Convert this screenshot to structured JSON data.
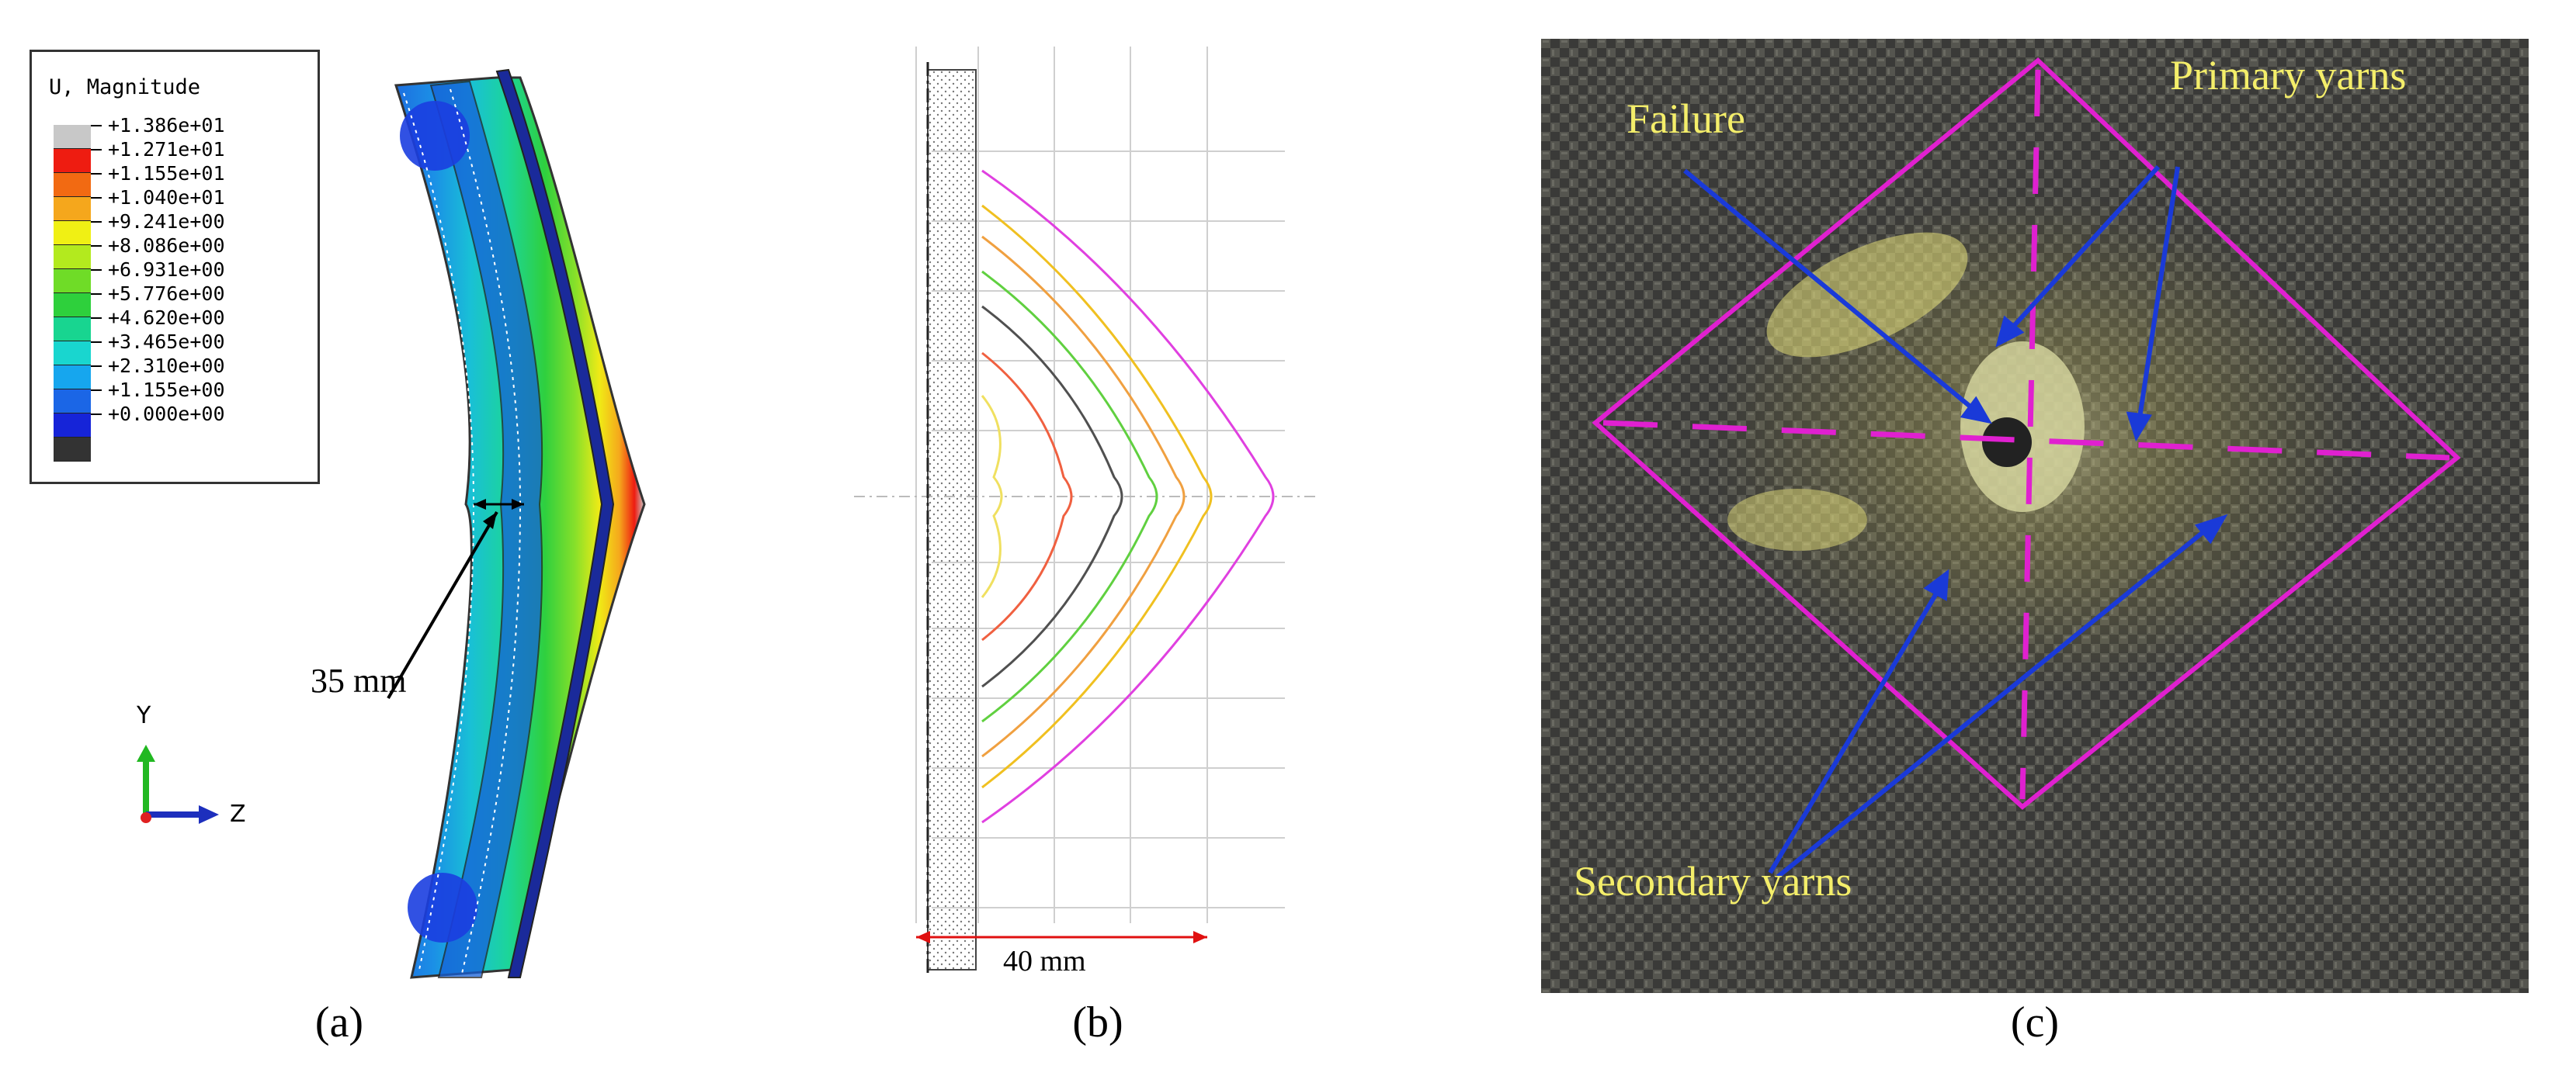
{
  "panel_a": {
    "caption": "(a)",
    "legend": {
      "title": "U, Magnitude",
      "entries": [
        {
          "value": "+1.386e+01",
          "color": "#c8c8c8"
        },
        {
          "value": "+1.271e+01",
          "color": "#ee1c11"
        },
        {
          "value": "+1.155e+01",
          "color": "#f26a12"
        },
        {
          "value": "+1.040e+01",
          "color": "#f5a71c"
        },
        {
          "value": "+9.241e+00",
          "color": "#f0f014"
        },
        {
          "value": "+8.086e+00",
          "color": "#b3ea1e"
        },
        {
          "value": "+6.931e+00",
          "color": "#6fdc27"
        },
        {
          "value": "+5.776e+00",
          "color": "#2ed03c"
        },
        {
          "value": "+4.620e+00",
          "color": "#18d590"
        },
        {
          "value": "+3.465e+00",
          "color": "#19d6cf"
        },
        {
          "value": "+2.310e+00",
          "color": "#16a6ee"
        },
        {
          "value": "+1.155e+00",
          "color": "#1b66e6"
        },
        {
          "value": "+0.000e+00",
          "color": "#1624d8"
        }
      ],
      "last_color": "#333333"
    },
    "dimension_label": "35 mm",
    "axis": {
      "y": "Y",
      "z": "Z"
    }
  },
  "panel_b": {
    "caption": "(b)",
    "dimension_label": "40 mm",
    "curve_colors": [
      "#f0e060",
      "#f06040",
      "#505050",
      "#60d040",
      "#f0a040",
      "#f0c020",
      "#e040e0"
    ]
  },
  "panel_c": {
    "caption": "(c)",
    "labels": {
      "failure": "Failure",
      "primary": "Primary yarns",
      "secondary": "Secondary yarns"
    },
    "colors": {
      "diamond": "#e020d0",
      "arrow": "#1a3ad8",
      "text": "#f4ee6a"
    }
  }
}
